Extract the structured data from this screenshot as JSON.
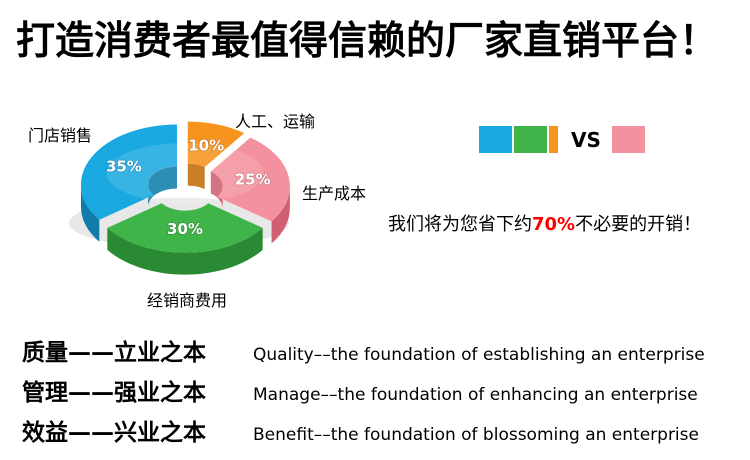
{
  "title": "打造消费者最值得信赖的厂家直销平台！",
  "chart_data": {
    "type": "pie",
    "style": "3d-exploded-donut",
    "unit": "percent",
    "legend_position": "right",
    "slices": [
      {
        "label": "人工、运输",
        "value": 10,
        "percent": "10%",
        "color": "#f7941d",
        "wall": "#c06d06"
      },
      {
        "label": "生产成本",
        "value": 25,
        "percent": "25%",
        "color": "#f4919e",
        "wall": "#d05f72"
      },
      {
        "label": "经销商费用",
        "value": 30,
        "percent": "30%",
        "color": "#3eb449",
        "wall": "#2a8a33"
      },
      {
        "label": "门店销售",
        "value": 35,
        "percent": "35%",
        "color": "#1aa8e0",
        "wall": "#0f7cab"
      }
    ]
  },
  "legend": {
    "vs_label": "VS",
    "left_swatches": [
      "#1aa8e0",
      "#3eb449",
      "#f7941d"
    ],
    "right_swatch": "#f4919e"
  },
  "savings_line": {
    "prefix": "我们将为您省下约",
    "highlight": "70%",
    "suffix": "不必要的开销！",
    "highlight_color": "#ff0000"
  },
  "slogans": [
    {
      "cn": "质量——立业之本",
      "en": "Quality––the foundation of establishing an enterprise"
    },
    {
      "cn": "管理——强业之本",
      "en": "Manage––the foundation of enhancing an enterprise"
    },
    {
      "cn": "效益——兴业之本",
      "en": "Benefit––the foundation of blossoming an enterprise"
    }
  ]
}
